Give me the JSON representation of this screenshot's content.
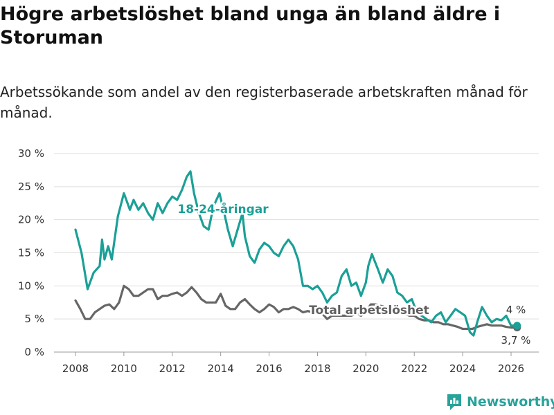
{
  "title": "Högre arbetslöshet bland unga än bland äldre i Storuman",
  "subtitle": "Arbetssökande som andel av den registerbaserade arbetskraften månad för månad.",
  "brand": "Newsworthy",
  "colors": {
    "youth": "#1aa097",
    "total": "#666666",
    "grid": "#dddddd",
    "brand": "#27a39a"
  },
  "chart_data": {
    "type": "line",
    "title": "Högre arbetslöshet bland unga än bland äldre i Storuman",
    "xlabel": "",
    "ylabel": "",
    "xlim": [
      2008,
      2026.25
    ],
    "ylim": [
      0,
      30
    ],
    "y_ticks": [
      0,
      5,
      10,
      15,
      20,
      25,
      30
    ],
    "y_tick_labels": [
      "0 %",
      "5 %",
      "10 %",
      "15 %",
      "20 %",
      "25 %",
      "30 %"
    ],
    "x_ticks": [
      2008,
      2010,
      2012,
      2014,
      2016,
      2018,
      2020,
      2022,
      2024,
      2026
    ],
    "x_tick_labels": [
      "2008",
      "2010",
      "2012",
      "2014",
      "2016",
      "2018",
      "2020",
      "2022",
      "2024",
      "2026"
    ],
    "grid": true,
    "series": [
      {
        "name": "18-24-åringar",
        "label": "18-24-åringar",
        "end_label": "4 %",
        "values": [
          [
            2008.0,
            18.5
          ],
          [
            2008.25,
            15
          ],
          [
            2008.5,
            9.5
          ],
          [
            2008.75,
            12
          ],
          [
            2009.0,
            13
          ],
          [
            2009.1,
            17
          ],
          [
            2009.2,
            14
          ],
          [
            2009.35,
            16
          ],
          [
            2009.5,
            14
          ],
          [
            2009.75,
            20.5
          ],
          [
            2010.0,
            24
          ],
          [
            2010.25,
            21.5
          ],
          [
            2010.4,
            23
          ],
          [
            2010.6,
            21.5
          ],
          [
            2010.8,
            22.5
          ],
          [
            2011.0,
            21
          ],
          [
            2011.2,
            20
          ],
          [
            2011.4,
            22.5
          ],
          [
            2011.6,
            21
          ],
          [
            2011.8,
            22.5
          ],
          [
            2012.0,
            23.5
          ],
          [
            2012.2,
            23
          ],
          [
            2012.4,
            24.5
          ],
          [
            2012.6,
            26.5
          ],
          [
            2012.75,
            27.3
          ],
          [
            2012.9,
            24
          ],
          [
            2013.1,
            21
          ],
          [
            2013.3,
            19
          ],
          [
            2013.5,
            18.5
          ],
          [
            2013.7,
            22
          ],
          [
            2013.95,
            24
          ],
          [
            2014.15,
            21
          ],
          [
            2014.3,
            18.5
          ],
          [
            2014.5,
            16
          ],
          [
            2014.7,
            18.5
          ],
          [
            2014.9,
            21
          ],
          [
            2015.0,
            17.5
          ],
          [
            2015.2,
            14.5
          ],
          [
            2015.4,
            13.5
          ],
          [
            2015.6,
            15.5
          ],
          [
            2015.8,
            16.5
          ],
          [
            2016.0,
            16
          ],
          [
            2016.2,
            15
          ],
          [
            2016.4,
            14.5
          ],
          [
            2016.6,
            16
          ],
          [
            2016.8,
            17
          ],
          [
            2017.0,
            16
          ],
          [
            2017.2,
            14
          ],
          [
            2017.4,
            10
          ],
          [
            2017.6,
            10
          ],
          [
            2017.8,
            9.5
          ],
          [
            2018.0,
            10
          ],
          [
            2018.2,
            9
          ],
          [
            2018.4,
            7.5
          ],
          [
            2018.6,
            8.5
          ],
          [
            2018.8,
            9
          ],
          [
            2019.0,
            11.5
          ],
          [
            2019.2,
            12.5
          ],
          [
            2019.4,
            10
          ],
          [
            2019.6,
            10.5
          ],
          [
            2019.8,
            8.5
          ],
          [
            2020.0,
            10.5
          ],
          [
            2020.1,
            13
          ],
          [
            2020.25,
            14.8
          ],
          [
            2020.5,
            12.5
          ],
          [
            2020.7,
            10.5
          ],
          [
            2020.9,
            12.5
          ],
          [
            2021.1,
            11.5
          ],
          [
            2021.3,
            9
          ],
          [
            2021.5,
            8.5
          ],
          [
            2021.7,
            7.5
          ],
          [
            2021.9,
            8
          ],
          [
            2022.1,
            6
          ],
          [
            2022.3,
            5.5
          ],
          [
            2022.5,
            5
          ],
          [
            2022.7,
            4.5
          ],
          [
            2022.9,
            5.5
          ],
          [
            2023.1,
            6
          ],
          [
            2023.3,
            4.5
          ],
          [
            2023.5,
            5.5
          ],
          [
            2023.7,
            6.5
          ],
          [
            2023.9,
            6
          ],
          [
            2024.1,
            5.5
          ],
          [
            2024.3,
            3
          ],
          [
            2024.45,
            2.5
          ],
          [
            2024.6,
            4.5
          ],
          [
            2024.8,
            6.8
          ],
          [
            2025.0,
            5.5
          ],
          [
            2025.2,
            4.5
          ],
          [
            2025.4,
            5
          ],
          [
            2025.6,
            4.8
          ],
          [
            2025.8,
            5.5
          ],
          [
            2026.0,
            4
          ],
          [
            2026.25,
            4
          ]
        ]
      },
      {
        "name": "Total arbetslöshet",
        "label": "Total arbetslöshet",
        "end_label": "3,7 %",
        "values": [
          [
            2008.0,
            7.8
          ],
          [
            2008.2,
            6.5
          ],
          [
            2008.4,
            5
          ],
          [
            2008.6,
            5
          ],
          [
            2008.8,
            6
          ],
          [
            2009.0,
            6.5
          ],
          [
            2009.2,
            7
          ],
          [
            2009.4,
            7.2
          ],
          [
            2009.6,
            6.5
          ],
          [
            2009.8,
            7.5
          ],
          [
            2010.0,
            10
          ],
          [
            2010.2,
            9.5
          ],
          [
            2010.4,
            8.5
          ],
          [
            2010.6,
            8.5
          ],
          [
            2010.8,
            9
          ],
          [
            2011.0,
            9.5
          ],
          [
            2011.2,
            9.5
          ],
          [
            2011.4,
            8
          ],
          [
            2011.6,
            8.5
          ],
          [
            2011.8,
            8.5
          ],
          [
            2012.0,
            8.8
          ],
          [
            2012.2,
            9
          ],
          [
            2012.4,
            8.5
          ],
          [
            2012.6,
            9
          ],
          [
            2012.8,
            9.8
          ],
          [
            2013.0,
            9
          ],
          [
            2013.2,
            8
          ],
          [
            2013.4,
            7.5
          ],
          [
            2013.6,
            7.5
          ],
          [
            2013.8,
            7.5
          ],
          [
            2014.0,
            8.8
          ],
          [
            2014.2,
            7
          ],
          [
            2014.4,
            6.5
          ],
          [
            2014.6,
            6.5
          ],
          [
            2014.8,
            7.5
          ],
          [
            2015.0,
            8
          ],
          [
            2015.2,
            7.2
          ],
          [
            2015.4,
            6.5
          ],
          [
            2015.6,
            6
          ],
          [
            2015.8,
            6.5
          ],
          [
            2016.0,
            7.2
          ],
          [
            2016.2,
            6.8
          ],
          [
            2016.4,
            6
          ],
          [
            2016.6,
            6.5
          ],
          [
            2016.8,
            6.5
          ],
          [
            2017.0,
            6.8
          ],
          [
            2017.2,
            6.5
          ],
          [
            2017.4,
            6
          ],
          [
            2017.6,
            6.2
          ],
          [
            2017.8,
            6
          ],
          [
            2018.0,
            6
          ],
          [
            2018.2,
            5.8
          ],
          [
            2018.4,
            5
          ],
          [
            2018.6,
            5.5
          ],
          [
            2018.8,
            5.5
          ],
          [
            2019.0,
            5.5
          ],
          [
            2019.2,
            5.5
          ],
          [
            2019.4,
            5.5
          ],
          [
            2019.6,
            5.8
          ],
          [
            2019.8,
            5.5
          ],
          [
            2020.0,
            6
          ],
          [
            2020.2,
            7.2
          ],
          [
            2020.4,
            7.2
          ],
          [
            2020.6,
            7
          ],
          [
            2020.8,
            6.8
          ],
          [
            2021.0,
            6.5
          ],
          [
            2021.2,
            6.5
          ],
          [
            2021.4,
            6
          ],
          [
            2021.6,
            5.8
          ],
          [
            2021.8,
            5.5
          ],
          [
            2022.0,
            5.5
          ],
          [
            2022.2,
            5
          ],
          [
            2022.4,
            4.8
          ],
          [
            2022.6,
            4.8
          ],
          [
            2022.8,
            4.5
          ],
          [
            2023.0,
            4.5
          ],
          [
            2023.2,
            4.2
          ],
          [
            2023.4,
            4.2
          ],
          [
            2023.6,
            4
          ],
          [
            2023.8,
            3.8
          ],
          [
            2024.0,
            3.5
          ],
          [
            2024.2,
            3.5
          ],
          [
            2024.4,
            3.5
          ],
          [
            2024.6,
            3.8
          ],
          [
            2024.8,
            4
          ],
          [
            2025.0,
            4.2
          ],
          [
            2025.2,
            4
          ],
          [
            2025.4,
            4
          ],
          [
            2025.6,
            4
          ],
          [
            2025.8,
            3.8
          ],
          [
            2026.0,
            3.7
          ],
          [
            2026.25,
            3.7
          ]
        ]
      }
    ]
  }
}
